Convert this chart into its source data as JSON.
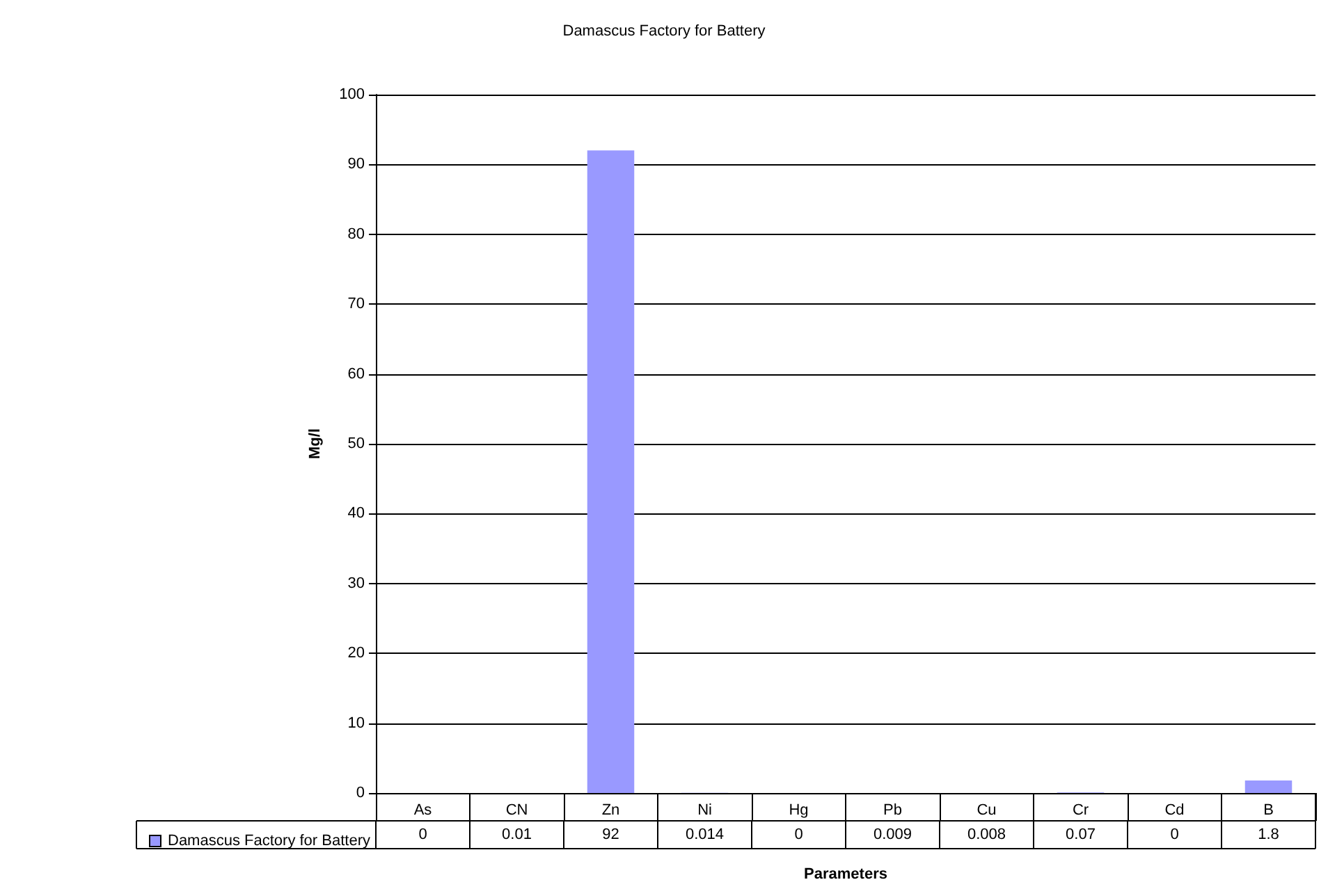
{
  "chart_data": {
    "type": "bar",
    "title": "Damascus Factory for Battery",
    "xlabel": "Parameters",
    "ylabel": "Mg/l",
    "categories": [
      "As",
      "CN",
      "Zn",
      "Ni",
      "Hg",
      "Pb",
      "Cu",
      "Cr",
      "Cd",
      "B"
    ],
    "series": [
      {
        "name": "Damascus Factory for Battery",
        "color": "#9999ff",
        "values": [
          0,
          0.01,
          92,
          0.014,
          0,
          0.009,
          0.008,
          0.07,
          0,
          1.8
        ]
      }
    ],
    "ylim": [
      0,
      100
    ],
    "yticks": [
      0,
      10,
      20,
      30,
      40,
      50,
      60,
      70,
      80,
      90,
      100
    ],
    "grid": "y",
    "legend": "bottom left",
    "data_labels": true
  }
}
